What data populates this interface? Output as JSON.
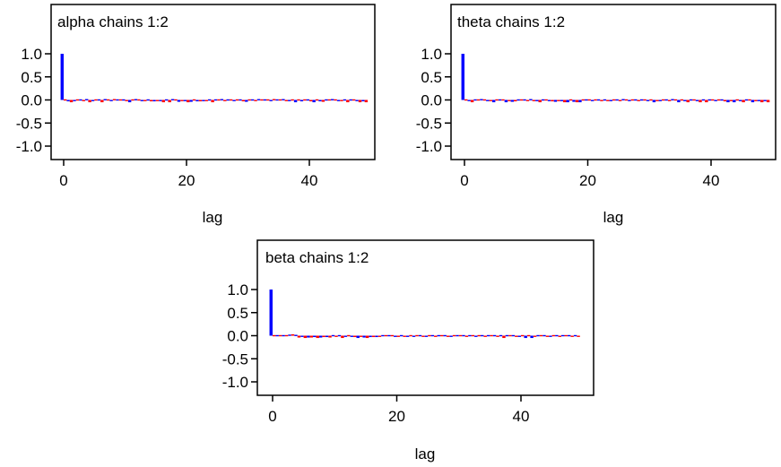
{
  "figure": {
    "colors": {
      "chain1": "#0000ff",
      "chain2": "#ff0000",
      "axis": "#000000"
    }
  },
  "chart_data": [
    {
      "type": "bar",
      "title": "alpha chains 1:2",
      "xlabel": "lag",
      "ylabel": "",
      "xlim": [
        -1,
        50
      ],
      "ylim": [
        -1.25,
        1.3
      ],
      "yticks": [
        1.0,
        0.5,
        0.0,
        -0.5,
        -1.0
      ],
      "ytick_labels": [
        "1.0",
        "0.5",
        "0.0",
        "-0.5",
        "-1.0"
      ],
      "xticks": [
        0,
        20,
        40
      ],
      "xtick_labels": [
        "0",
        "20",
        "40"
      ],
      "grid": false,
      "legend": "none",
      "series": [
        {
          "chain": 1,
          "lags": [
            0,
            1,
            2,
            3,
            4,
            5,
            6,
            7,
            8,
            9,
            10,
            11,
            12,
            13,
            14,
            15,
            16,
            17,
            18,
            19,
            20,
            21,
            22,
            23,
            24,
            25,
            26,
            27,
            28,
            29,
            30,
            31,
            32,
            33,
            34,
            35,
            36,
            37,
            38,
            39,
            40,
            41,
            42,
            43,
            44,
            45,
            46,
            47,
            48,
            49
          ],
          "values": [
            1.0,
            -0.03,
            -0.02,
            0.0,
            0.01,
            -0.02,
            0.0,
            0.01,
            -0.01,
            0.0,
            0.0,
            -0.05,
            0.01,
            -0.02,
            0.0,
            -0.03,
            -0.02,
            0.0,
            0.01,
            -0.04,
            -0.02,
            -0.04,
            -0.03,
            -0.02,
            0.0,
            0.0,
            0.01,
            0.0,
            -0.02,
            0.0,
            -0.04,
            0.0,
            0.01,
            0.0,
            -0.02,
            0.0,
            0.01,
            -0.02,
            -0.05,
            -0.03,
            0.0,
            -0.05,
            -0.03,
            0.0,
            0.01,
            -0.02,
            0.0,
            0.0,
            -0.02,
            -0.03
          ]
        },
        {
          "chain": 2,
          "lags": [
            0,
            1,
            2,
            3,
            4,
            5,
            6,
            7,
            8,
            9,
            10,
            11,
            12,
            13,
            14,
            15,
            16,
            17,
            18,
            19,
            20,
            21,
            22,
            23,
            24,
            25,
            26,
            27,
            28,
            29,
            30,
            31,
            32,
            33,
            34,
            35,
            36,
            37,
            38,
            39,
            40,
            41,
            42,
            43,
            44,
            45,
            46,
            47,
            48,
            49
          ],
          "values": [
            0.0,
            -0.05,
            0.0,
            -0.01,
            -0.05,
            0.0,
            -0.05,
            0.0,
            0.01,
            0.0,
            -0.02,
            0.0,
            0.0,
            -0.02,
            -0.03,
            -0.02,
            -0.05,
            -0.05,
            0.0,
            -0.02,
            -0.05,
            0.0,
            -0.03,
            -0.02,
            -0.05,
            0.0,
            -0.01,
            0.0,
            0.0,
            -0.03,
            0.0,
            -0.01,
            0.0,
            0.0,
            0.01,
            0.0,
            -0.01,
            0.0,
            0.0,
            0.0,
            -0.03,
            0.0,
            -0.04,
            0.0,
            0.0,
            -0.02,
            -0.05,
            0.0,
            -0.05,
            -0.05
          ]
        }
      ]
    },
    {
      "type": "bar",
      "title": "theta chains 1:2",
      "xlabel": "lag",
      "ylabel": "",
      "xlim": [
        -1,
        50
      ],
      "ylim": [
        -1.25,
        1.3
      ],
      "yticks": [
        1.0,
        0.5,
        0.0,
        -0.5,
        -1.0
      ],
      "ytick_labels": [
        "1.0",
        "0.5",
        "0.0",
        "-0.5",
        "-1.0"
      ],
      "xticks": [
        0,
        20,
        40
      ],
      "xtick_labels": [
        "0",
        "20",
        "40"
      ],
      "grid": false,
      "legend": "none",
      "series": [
        {
          "chain": 1,
          "lags": [
            0,
            1,
            2,
            3,
            4,
            5,
            6,
            7,
            8,
            9,
            10,
            11,
            12,
            13,
            14,
            15,
            16,
            17,
            18,
            19,
            20,
            21,
            22,
            23,
            24,
            25,
            26,
            27,
            28,
            29,
            30,
            31,
            32,
            33,
            34,
            35,
            36,
            37,
            38,
            39,
            40,
            41,
            42,
            43,
            44,
            45,
            46,
            47,
            48,
            49
          ],
          "values": [
            1.0,
            -0.02,
            0.0,
            0.01,
            -0.02,
            -0.05,
            0.0,
            -0.05,
            -0.04,
            0.0,
            0.0,
            0.01,
            -0.02,
            0.0,
            -0.02,
            -0.04,
            -0.02,
            -0.05,
            -0.04,
            -0.05,
            0.0,
            -0.02,
            0.0,
            0.0,
            -0.02,
            0.0,
            0.01,
            -0.02,
            0.0,
            0.0,
            -0.02,
            -0.05,
            -0.02,
            0.0,
            0.01,
            -0.05,
            -0.02,
            0.0,
            -0.02,
            0.0,
            0.0,
            -0.02,
            0.0,
            -0.05,
            -0.05,
            -0.02,
            0.0,
            -0.05,
            -0.02,
            -0.02
          ]
        },
        {
          "chain": 2,
          "lags": [
            0,
            1,
            2,
            3,
            4,
            5,
            6,
            7,
            8,
            9,
            10,
            11,
            12,
            13,
            14,
            15,
            16,
            17,
            18,
            19,
            20,
            21,
            22,
            23,
            24,
            25,
            26,
            27,
            28,
            29,
            30,
            31,
            32,
            33,
            34,
            35,
            36,
            37,
            38,
            39,
            40,
            41,
            42,
            43,
            44,
            45,
            46,
            47,
            48,
            49
          ],
          "values": [
            0.0,
            -0.05,
            0.0,
            0.0,
            -0.01,
            0.0,
            0.0,
            -0.02,
            -0.03,
            0.0,
            -0.02,
            -0.01,
            -0.05,
            0.0,
            -0.03,
            -0.02,
            -0.05,
            0.0,
            -0.05,
            0.0,
            0.0,
            0.0,
            -0.02,
            -0.01,
            0.0,
            -0.02,
            0.0,
            0.0,
            -0.01,
            0.0,
            0.0,
            -0.02,
            0.0,
            -0.02,
            0.0,
            0.0,
            -0.05,
            0.0,
            -0.05,
            -0.05,
            0.0,
            0.0,
            -0.03,
            -0.02,
            0.0,
            -0.05,
            0.0,
            -0.02,
            -0.05,
            -0.05
          ]
        }
      ]
    },
    {
      "type": "bar",
      "title": "beta chains 1:2",
      "xlabel": "lag",
      "ylabel": "",
      "xlim": [
        -1,
        50
      ],
      "ylim": [
        -1.25,
        1.3
      ],
      "yticks": [
        1.0,
        0.5,
        0.0,
        -0.5,
        -1.0
      ],
      "ytick_labels": [
        "1.0",
        "0.5",
        "0.0",
        "-0.5",
        "-1.0"
      ],
      "xticks": [
        0,
        20,
        40
      ],
      "xtick_labels": [
        "0",
        "20",
        "40"
      ],
      "grid": false,
      "legend": "none",
      "series": [
        {
          "chain": 1,
          "lags": [
            0,
            1,
            2,
            3,
            4,
            5,
            6,
            7,
            8,
            9,
            10,
            11,
            12,
            13,
            14,
            15,
            16,
            17,
            18,
            19,
            20,
            21,
            22,
            23,
            24,
            25,
            26,
            27,
            28,
            29,
            30,
            31,
            32,
            33,
            34,
            35,
            36,
            37,
            38,
            39,
            40,
            41,
            42,
            43,
            44,
            45,
            46,
            47,
            48,
            49
          ],
          "values": [
            1.0,
            0.0,
            0.0,
            0.02,
            0.01,
            -0.02,
            -0.04,
            -0.03,
            -0.04,
            -0.03,
            0.0,
            0.0,
            -0.02,
            -0.02,
            -0.05,
            -0.04,
            -0.03,
            -0.03,
            0.0,
            0.0,
            -0.02,
            0.0,
            -0.01,
            -0.01,
            0.0,
            -0.02,
            0.0,
            0.0,
            0.0,
            -0.01,
            0.0,
            0.0,
            0.0,
            -0.01,
            0.0,
            0.0,
            0.0,
            0.0,
            0.0,
            0.0,
            -0.02,
            -0.05,
            -0.05,
            0.0,
            0.0,
            -0.01,
            0.0,
            0.0,
            0.0,
            0.0
          ]
        },
        {
          "chain": 2,
          "lags": [
            0,
            1,
            2,
            3,
            4,
            5,
            6,
            7,
            8,
            9,
            10,
            11,
            12,
            13,
            14,
            15,
            16,
            17,
            18,
            19,
            20,
            21,
            22,
            23,
            24,
            25,
            26,
            27,
            28,
            29,
            30,
            31,
            32,
            33,
            34,
            35,
            36,
            37,
            38,
            39,
            40,
            41,
            42,
            43,
            44,
            45,
            46,
            47,
            48,
            49
          ],
          "values": [
            0.0,
            0.0,
            0.0,
            0.03,
            -0.04,
            -0.05,
            -0.04,
            -0.05,
            -0.03,
            -0.04,
            -0.02,
            -0.05,
            0.0,
            -0.03,
            -0.02,
            -0.05,
            -0.03,
            -0.02,
            0.0,
            0.0,
            -0.02,
            -0.01,
            0.0,
            0.0,
            -0.02,
            0.0,
            -0.02,
            0.0,
            -0.02,
            0.0,
            0.0,
            -0.02,
            0.0,
            0.0,
            -0.02,
            0.0,
            -0.02,
            -0.05,
            0.0,
            -0.01,
            0.0,
            0.0,
            -0.01,
            0.0,
            -0.02,
            0.0,
            -0.02,
            0.0,
            -0.02,
            -0.02
          ]
        }
      ]
    }
  ]
}
